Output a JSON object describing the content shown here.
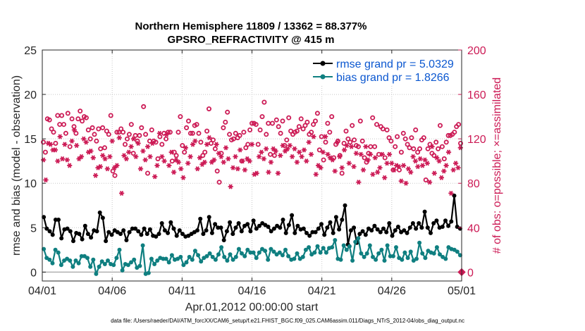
{
  "chart_data": {
    "type": "line",
    "title": [
      "Northern Hemisphere 11809 / 13362 = 88.377%",
      "GPSRO_REFRACTIVITY @ 415 m"
    ],
    "xlabel": "Apr.01,2012 00:00:00 start",
    "ylabel": "rmse and bias (model - observation)",
    "ylabel_right": "# of obs: o=possible; ×=assimilated",
    "footer": "data file: /Users/raeder/DAI/ATM_forcXX/CAM6_setup/f.e21.FHIST_BGC.f09_025.CAM6assim.011/Diags_NTrS_2012-04/obs_diag_output.nc",
    "xlim": [
      0,
      30
    ],
    "ylim": [
      -1,
      25
    ],
    "ylim_right": [
      -8,
      200
    ],
    "xticks": [
      0,
      5,
      10,
      15,
      20,
      25,
      30
    ],
    "xtick_labels": [
      "04/01",
      "04/06",
      "04/11",
      "04/16",
      "04/21",
      "04/26",
      "05/01"
    ],
    "yticks": [
      0,
      5,
      10,
      15,
      20,
      25
    ],
    "yticks_right": [
      0,
      40,
      80,
      120,
      160,
      200
    ],
    "grid": true,
    "legend_position": "top-right",
    "series": [
      {
        "name": "rmse grand pr = 5.0329",
        "axis": "left",
        "color": "#000000",
        "marker": "filled-circle",
        "values": [
          6.2,
          4.9,
          4.6,
          4.2,
          5.9,
          5.9,
          3.8,
          4.8,
          4.9,
          4.6,
          3.5,
          4.4,
          4.3,
          3.7,
          5.2,
          4.3,
          3.9,
          4.7,
          4.6,
          6.7,
          6.1,
          3.5,
          4.5,
          4.2,
          4.7,
          4.5,
          4.3,
          4.7,
          3.6,
          4.5,
          4.9,
          4.9,
          4.6,
          4.2,
          4.9,
          4.3,
          4.8,
          4.1,
          4.0,
          4.3,
          5.5,
          4.7,
          4.4,
          5.6,
          4.9,
          4.1,
          4.7,
          4.3,
          4.0,
          4.1,
          4.3,
          4.5,
          4.7,
          6.0,
          4.3,
          4.7,
          6.2,
          4.4,
          5.4,
          5.0,
          5.0,
          3.6,
          4.6,
          5.6,
          4.3,
          5.0,
          5.5,
          4.6,
          5.2,
          5.4,
          4.6,
          5.8,
          4.9,
          5.2,
          5.5,
          5.3,
          5.1,
          4.6,
          4.9,
          5.2,
          5.0,
          5.9,
          4.4,
          5.3,
          6.4,
          4.4,
          5.2,
          4.8,
          4.9,
          4.4,
          4.1,
          4.5,
          4.5,
          4.9,
          5.4,
          4.2,
          5.0,
          5.6,
          4.4,
          6.2,
          4.8,
          5.9,
          7.5,
          3.1,
          4.7,
          5.0,
          3.3,
          4.3,
          4.6,
          4.2,
          4.9,
          4.7,
          5.2,
          4.8,
          4.5,
          4.9,
          4.5,
          5.5,
          4.1,
          4.7,
          5.1,
          4.5,
          4.7,
          4.4,
          5.0,
          5.5,
          4.9,
          5.5,
          5.0,
          6.8,
          5.0,
          4.4,
          5.5,
          5.8,
          5.0,
          5.1,
          5.8,
          5.2,
          5.7,
          8.6,
          5.1,
          4.9
        ]
      },
      {
        "name": "bias grand pr = 1.8266",
        "axis": "left",
        "color": "#0f7f80",
        "marker": "filled-circle",
        "values": [
          2.6,
          1.6,
          1.4,
          1.0,
          2.5,
          2.2,
          0.8,
          1.3,
          1.5,
          1.3,
          0.6,
          1.3,
          1.0,
          1.8,
          1.8,
          1.6,
          0.6,
          1.4,
          -0.2,
          0.6,
          1.2,
          0.9,
          1.3,
          0.9,
          0.8,
          1.6,
          2.5,
          0.2,
          0.9,
          0.8,
          1.1,
          1.4,
          0.5,
          0.7,
          3.0,
          -0.2,
          -0.1,
          1.5,
          0.9,
          1.3,
          1.6,
          1.5,
          1.5,
          1.1,
          1.9,
          1.4,
          1.5,
          1.7,
          0.8,
          1.1,
          1.7,
          1.4,
          2.4,
          1.9,
          1.2,
          1.6,
          1.8,
          2.1,
          1.7,
          1.4,
          2.0,
          2.8,
          1.7,
          1.3,
          2.0,
          1.4,
          1.7,
          2.6,
          2.1,
          1.8,
          2.5,
          2.2,
          2.2,
          1.6,
          2.2,
          2.6,
          2.4,
          1.4,
          2.6,
          2.3,
          2.0,
          2.2,
          1.9,
          2.5,
          1.8,
          1.4,
          1.5,
          2.1,
          1.5,
          1.7,
          2.5,
          2.8,
          2.0,
          2.2,
          2.9,
          2.2,
          2.7,
          2.2,
          2.7,
          2.8,
          3.6,
          1.5,
          1.4,
          3.0,
          2.5,
          2.9,
          1.3,
          3.4,
          3.8,
          2.1,
          1.7,
          2.1,
          3.0,
          1.7,
          1.4,
          2.1,
          2.5,
          1.3,
          3.0,
          1.8,
          1.8,
          2.8,
          1.6,
          1.4,
          2.2,
          1.6,
          2.3,
          1.3,
          1.5,
          3.3,
          2.1,
          1.6,
          2.4,
          2.2,
          2.1,
          2.8,
          2.0,
          1.7,
          1.5,
          2.8,
          2.6,
          2.5,
          2.3,
          1.9
        ]
      },
      {
        "name": "possible",
        "axis": "right",
        "color": "#cc1a55",
        "marker": "open-circle",
        "values": [
          117,
          108,
          138,
          137,
          129,
          126,
          116,
          141,
          133,
          141,
          133,
          125,
          143,
          113,
          138,
          131,
          125,
          138,
          145,
          136,
          140,
          139,
          128,
          120,
          130,
          124,
          118,
          129,
          111,
          130,
          112,
          127,
          124,
          141,
          91,
          87,
          126,
          126,
          129,
          126,
          115,
          120,
          124,
          133,
          107,
          123,
          118,
          123,
          130,
          149,
          124,
          89,
          118,
          128,
          118,
          117,
          102,
          122,
          115,
          125,
          120,
          126,
          126,
          100,
          108,
          105,
          126,
          140,
          114,
          108,
          130,
          136,
          125,
          125,
          132,
          133,
          125,
          117,
          105,
          108,
          127,
          147,
          116,
          119,
          111,
          91,
          81,
          107,
          130,
          135,
          144,
          124,
          119,
          120,
          125,
          121,
          123,
          100,
          126,
          112,
          115,
          128,
          134,
          134,
          133,
          115,
          128,
          140,
          153,
          124,
          134,
          106,
          134,
          105,
          137,
          131,
          125,
          136,
          114,
          119,
          139,
          127,
          124,
          126,
          127,
          131,
          138,
          129,
          132,
          135,
          124,
          126,
          133,
          136,
          143,
          110,
          122,
          101,
          117,
          134,
          126,
          140,
          103,
          115,
          118,
          105,
          89,
          116,
          127,
          120,
          117,
          132,
          119,
          114,
          113,
          136,
          118,
          103,
          99,
          107,
          113,
          139,
          113,
          133,
          106,
          131,
          129,
          103,
          128,
          121,
          118,
          92,
          113,
          122,
          92,
          108,
          125,
          120,
          115,
          112,
          121,
          111,
          128,
          108,
          111,
          119,
          121,
          83,
          111,
          115,
          107,
          105,
          117,
          111,
          132,
          113,
          102,
          117,
          123,
          123,
          124,
          126,
          131,
          133,
          116
        ]
      },
      {
        "name": "assimilated",
        "axis": "right",
        "color": "#cc1a55",
        "marker": "asterisk",
        "values": [
          101,
          83,
          116,
          115,
          110,
          110,
          100,
          122,
          102,
          115,
          101,
          96,
          118,
          128,
          114,
          102,
          104,
          120,
          117,
          108,
          109,
          103,
          87,
          94,
          95,
          105,
          102,
          93,
          104,
          118,
          94,
          96,
          121,
          71,
          105,
          102,
          108,
          113,
          120,
          104,
          116,
          93,
          109,
          101,
          113,
          104,
          116,
          86,
          96,
          125,
          104,
          100,
          124,
          96,
          108,
          90,
          101,
          99,
          93,
          85,
          112,
          98,
          104,
          115,
          118,
          93,
          103,
          97,
          99,
          115,
          121,
          99,
          101,
          115,
          107,
          104,
          99,
          112,
          102,
          77,
          94,
          104,
          93,
          110,
          100,
          92,
          102,
          100,
          115,
          88,
          89,
          104,
          108,
          102,
          111,
          90,
          99,
          111,
          109,
          89,
          105,
          114,
          109,
          111,
          114,
          104,
          111,
          99,
          108,
          104,
          110,
          100,
          117,
          106,
          122,
          88,
          96,
          94,
          108,
          122,
          106,
          103,
          101,
          91,
          117,
          104,
          94,
          110,
          114,
          98,
          113,
          95,
          107,
          81,
          106,
          92,
          113,
          101,
          106,
          88,
          103,
          90,
          94,
          106,
          85,
          98,
          106,
          98,
          92,
          96,
          95,
          82,
          96,
          80,
          93,
          90,
          104,
          100,
          95,
          102,
          96,
          101,
          98,
          81,
          113,
          89,
          103,
          100,
          85,
          91,
          96,
          108,
          71,
          92,
          98,
          94,
          112
        ]
      }
    ]
  }
}
